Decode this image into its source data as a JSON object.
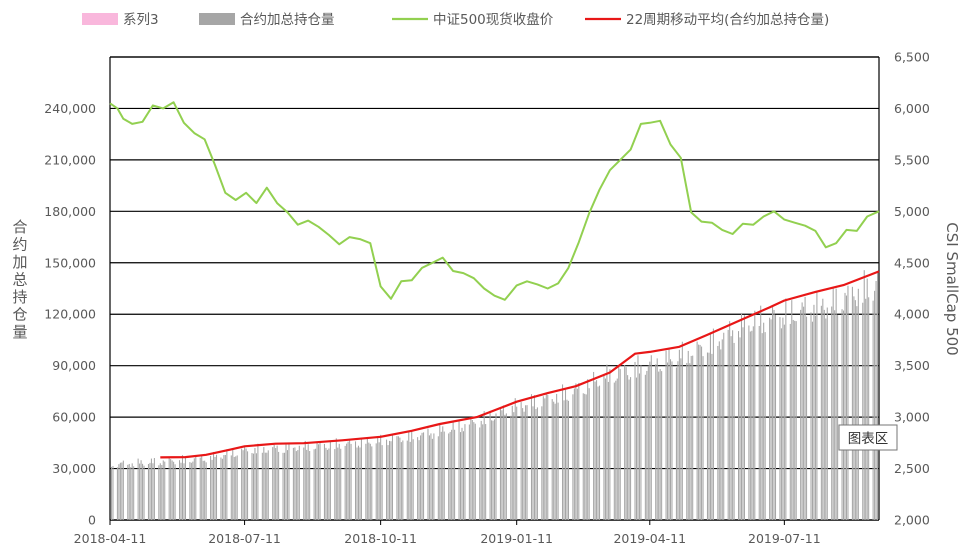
{
  "chart_data": {
    "type": "bar+line",
    "legend": {
      "position": "top",
      "entries": [
        {
          "name": "系列3",
          "kind": "bar",
          "color": "#f9b7dc"
        },
        {
          "name": "合约加总持仓量",
          "kind": "bar",
          "color": "#a6a6a6"
        },
        {
          "name": "中证500现货收盘价",
          "kind": "line",
          "color": "#92d050"
        },
        {
          "name": "22周期移动平均(合约加总持仓量)",
          "kind": "line",
          "color": "#e81717"
        }
      ]
    },
    "y_left": {
      "title": "合约加总持仓量",
      "min": 0,
      "max": 270000,
      "step": 30000,
      "tick_labels": [
        "0",
        "30,000",
        "60,000",
        "90,000",
        "120,000",
        "150,000",
        "180,000",
        "210,000",
        "240,000"
      ]
    },
    "y_right": {
      "title": "CSI SmallCap 500",
      "min": 2000,
      "max": 6500,
      "step": 500,
      "tick_labels": [
        "2,000",
        "2,500",
        "3,000",
        "3,500",
        "4,000",
        "4,500",
        "5,000",
        "5,500",
        "6,000",
        "6,500"
      ]
    },
    "x_axis": {
      "start": "2018-04-11",
      "end": "2019-09-13",
      "tick_labels": [
        "2018-04-11",
        "2018-07-11",
        "2018-10-11",
        "2019-01-11",
        "2019-04-11",
        "2019-07-11"
      ]
    },
    "grid": {
      "horizontal": true,
      "vertical": false
    },
    "series": [
      {
        "name": "合约加总持仓量",
        "kind": "bar",
        "axis": "left",
        "color": "#a6a6a6",
        "points": [
          [
            "2018-04-11",
            35000
          ],
          [
            "2018-05-15",
            37000
          ],
          [
            "2018-06-15",
            39000
          ],
          [
            "2018-07-11",
            44000
          ],
          [
            "2018-08-15",
            46000
          ],
          [
            "2018-09-15",
            48000
          ],
          [
            "2018-10-11",
            50000
          ],
          [
            "2018-11-15",
            55000
          ],
          [
            "2018-12-15",
            62000
          ],
          [
            "2019-01-11",
            72000
          ],
          [
            "2019-02-15",
            80000
          ],
          [
            "2019-03-15",
            92000
          ],
          [
            "2019-04-11",
            98000
          ],
          [
            "2019-05-15",
            108000
          ],
          [
            "2019-06-15",
            124000
          ],
          [
            "2019-07-11",
            130000
          ],
          [
            "2019-08-15",
            138000
          ],
          [
            "2019-09-13",
            150000
          ]
        ]
      },
      {
        "name": "中证500现货收盘价",
        "kind": "line",
        "axis": "right",
        "color": "#92d050",
        "points": [
          [
            "2018-04-11",
            6050
          ],
          [
            "2018-04-16",
            6000
          ],
          [
            "2018-04-20",
            5900
          ],
          [
            "2018-04-26",
            5850
          ],
          [
            "2018-05-03",
            5870
          ],
          [
            "2018-05-10",
            6030
          ],
          [
            "2018-05-17",
            6000
          ],
          [
            "2018-05-24",
            6060
          ],
          [
            "2018-05-31",
            5860
          ],
          [
            "2018-06-07",
            5760
          ],
          [
            "2018-06-14",
            5700
          ],
          [
            "2018-06-21",
            5450
          ],
          [
            "2018-06-28",
            5180
          ],
          [
            "2018-07-05",
            5110
          ],
          [
            "2018-07-12",
            5180
          ],
          [
            "2018-07-19",
            5080
          ],
          [
            "2018-07-26",
            5230
          ],
          [
            "2018-08-02",
            5080
          ],
          [
            "2018-08-09",
            4990
          ],
          [
            "2018-08-16",
            4870
          ],
          [
            "2018-08-23",
            4910
          ],
          [
            "2018-08-30",
            4850
          ],
          [
            "2018-09-06",
            4770
          ],
          [
            "2018-09-13",
            4680
          ],
          [
            "2018-09-20",
            4750
          ],
          [
            "2018-09-27",
            4730
          ],
          [
            "2018-10-04",
            4690
          ],
          [
            "2018-10-11",
            4270
          ],
          [
            "2018-10-18",
            4150
          ],
          [
            "2018-10-25",
            4320
          ],
          [
            "2018-11-01",
            4330
          ],
          [
            "2018-11-08",
            4450
          ],
          [
            "2018-11-15",
            4500
          ],
          [
            "2018-11-22",
            4550
          ],
          [
            "2018-11-29",
            4420
          ],
          [
            "2018-12-06",
            4400
          ],
          [
            "2018-12-13",
            4350
          ],
          [
            "2018-12-20",
            4250
          ],
          [
            "2018-12-27",
            4180
          ],
          [
            "2019-01-03",
            4140
          ],
          [
            "2019-01-11",
            4280
          ],
          [
            "2019-01-18",
            4320
          ],
          [
            "2019-01-25",
            4290
          ],
          [
            "2019-02-01",
            4250
          ],
          [
            "2019-02-08",
            4300
          ],
          [
            "2019-02-15",
            4450
          ],
          [
            "2019-02-22",
            4700
          ],
          [
            "2019-03-01",
            4980
          ],
          [
            "2019-03-08",
            5210
          ],
          [
            "2019-03-15",
            5400
          ],
          [
            "2019-03-22",
            5500
          ],
          [
            "2019-03-29",
            5600
          ],
          [
            "2019-04-05",
            5850
          ],
          [
            "2019-04-11",
            5860
          ],
          [
            "2019-04-18",
            5880
          ],
          [
            "2019-04-25",
            5650
          ],
          [
            "2019-05-02",
            5520
          ],
          [
            "2019-05-09",
            4990
          ],
          [
            "2019-05-16",
            4900
          ],
          [
            "2019-05-23",
            4890
          ],
          [
            "2019-05-30",
            4820
          ],
          [
            "2019-06-06",
            4780
          ],
          [
            "2019-06-13",
            4880
          ],
          [
            "2019-06-20",
            4870
          ],
          [
            "2019-06-27",
            4950
          ],
          [
            "2019-07-04",
            5000
          ],
          [
            "2019-07-11",
            4920
          ],
          [
            "2019-07-18",
            4890
          ],
          [
            "2019-07-25",
            4860
          ],
          [
            "2019-08-01",
            4810
          ],
          [
            "2019-08-08",
            4650
          ],
          [
            "2019-08-15",
            4690
          ],
          [
            "2019-08-22",
            4820
          ],
          [
            "2019-08-29",
            4810
          ],
          [
            "2019-09-05",
            4950
          ],
          [
            "2019-09-13",
            5000
          ]
        ]
      },
      {
        "name": "22周期移动平均(合约加总持仓量)",
        "kind": "line",
        "axis": "left",
        "color": "#e81717",
        "points": [
          [
            "2018-05-15",
            36500
          ],
          [
            "2018-06-01",
            36700
          ],
          [
            "2018-06-15",
            38000
          ],
          [
            "2018-07-01",
            41000
          ],
          [
            "2018-07-11",
            43000
          ],
          [
            "2018-08-01",
            44500
          ],
          [
            "2018-08-20",
            44800
          ],
          [
            "2018-09-15",
            46500
          ],
          [
            "2018-10-11",
            48500
          ],
          [
            "2018-11-01",
            52000
          ],
          [
            "2018-11-20",
            56000
          ],
          [
            "2018-12-15",
            60000
          ],
          [
            "2019-01-11",
            69000
          ],
          [
            "2019-02-01",
            74000
          ],
          [
            "2019-02-20",
            78000
          ],
          [
            "2019-03-15",
            86000
          ],
          [
            "2019-04-01",
            97000
          ],
          [
            "2019-04-11",
            98000
          ],
          [
            "2019-05-01",
            101000
          ],
          [
            "2019-05-20",
            108000
          ],
          [
            "2019-06-15",
            118000
          ],
          [
            "2019-07-01",
            124000
          ],
          [
            "2019-07-11",
            128000
          ],
          [
            "2019-08-01",
            133000
          ],
          [
            "2019-08-20",
            137000
          ],
          [
            "2019-09-13",
            145000
          ]
        ]
      }
    ]
  },
  "tooltip": {
    "label": "图表区"
  }
}
